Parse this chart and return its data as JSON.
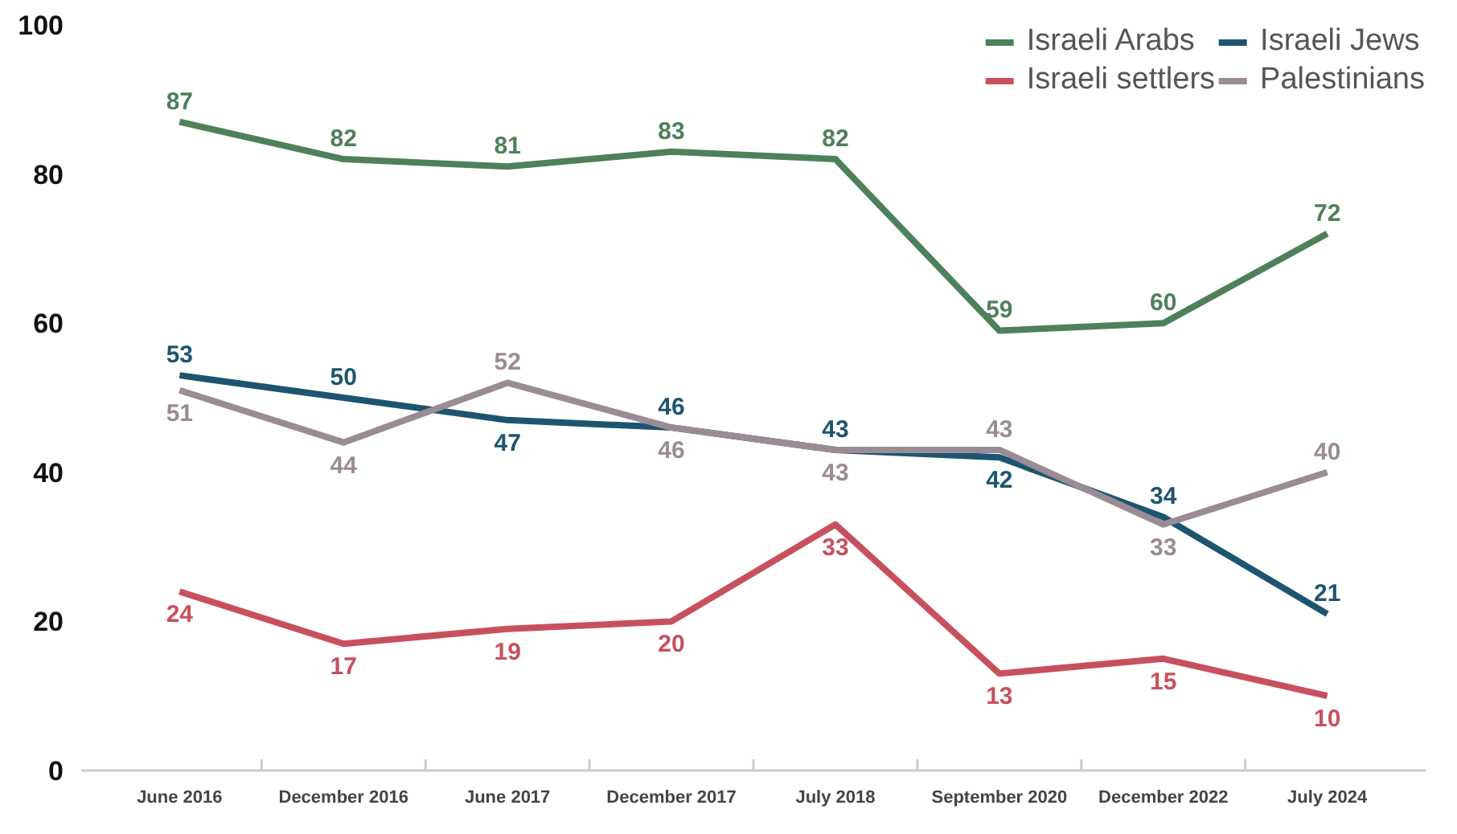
{
  "chart_data": {
    "type": "line",
    "categories": [
      "June 2016",
      "December 2016",
      "June 2017",
      "December 2017",
      "July 2018",
      "September 2020",
      "December 2022",
      "July 2024"
    ],
    "series": [
      {
        "name": "Israeli Arabs",
        "color": "#4e8059",
        "values": [
          87,
          82,
          81,
          83,
          82,
          59,
          60,
          72
        ]
      },
      {
        "name": "Israeli settlers",
        "color": "#c8505e",
        "values": [
          24,
          17,
          19,
          20,
          33,
          13,
          15,
          10
        ]
      },
      {
        "name": "Israeli Jews",
        "color": "#1d5570",
        "values": [
          53,
          50,
          47,
          46,
          43,
          42,
          34,
          21
        ]
      },
      {
        "name": "Palestinians",
        "color": "#9b8b95",
        "values": [
          51,
          44,
          52,
          46,
          43,
          43,
          33,
          40
        ]
      }
    ],
    "ylim": [
      0,
      100
    ],
    "yticks": [
      0,
      20,
      40,
      60,
      80,
      100
    ],
    "grid": false,
    "legend": "top right",
    "data_labels": true,
    "marker": "none",
    "line_style": "solid"
  }
}
